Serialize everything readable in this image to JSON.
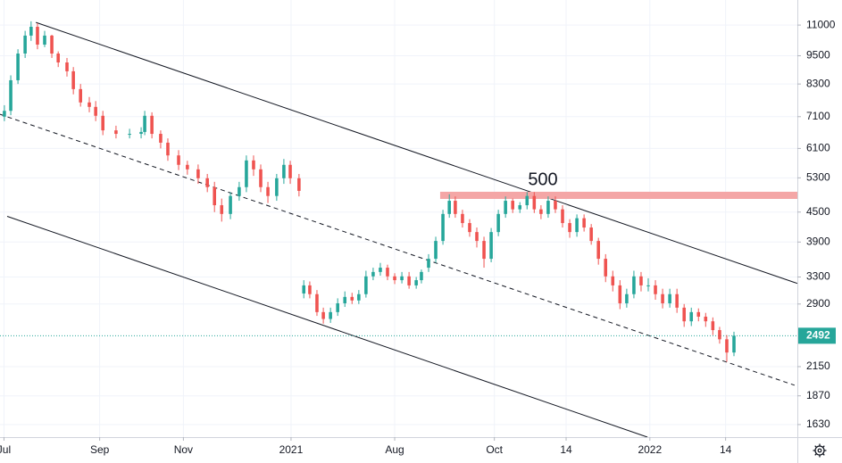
{
  "chart_data": {
    "type": "candlestick",
    "log_scale": true,
    "grid": true,
    "up_color": "#26a69a",
    "down_color": "#ef5350",
    "x": [
      1.1,
      2.7,
      4.5,
      6.3,
      7.8,
      9.4,
      11.2,
      13.0,
      14.6,
      16.8,
      18.4,
      20.2,
      22.4,
      24.0,
      25.8,
      29.1,
      32.5,
      35.4,
      36.3,
      38.1,
      40.3,
      42.1,
      44.8,
      47.0,
      49.7,
      52.0,
      53.8,
      55.6,
      57.8,
      60.0,
      61.8,
      63.6,
      65.4,
      67.2,
      69.4,
      71.2,
      72.8,
      75.0,
      76.2,
      77.7,
      79.5,
      81.1,
      82.9,
      84.7,
      86.5,
      88.3,
      90.0,
      91.8,
      93.6,
      95.4,
      97.2,
      99.0,
      100.8,
      102.6,
      104.4,
      105.7,
      107.5,
      109.3,
      111.1,
      112.7,
      114.2,
      116.0,
      117.8,
      119.6,
      121.4,
      123.2,
      125.0,
      126.8,
      128.6,
      130.4,
      132.2,
      134.0,
      135.7,
      137.5,
      139.3,
      141.1,
      142.9,
      144.7,
      146.5,
      148.3,
      150.1,
      151.9,
      153.7,
      155.5,
      157.2,
      159.0,
      160.8,
      162.6,
      164.4,
      166.2,
      168.0,
      169.8,
      171.6,
      173.4,
      175.2,
      177.0,
      178.8,
      180.5,
      182.3,
      184.1
    ],
    "open": [
      7100,
      7300,
      8450,
      9600,
      10460,
      10910,
      10020,
      10460,
      9600,
      9200,
      8820,
      8100,
      7600,
      7440,
      7130,
      6650,
      6540,
      6540,
      6600,
      7130,
      6540,
      6270,
      5900,
      5640,
      5520,
      5290,
      5070,
      4650,
      4460,
      4860,
      5070,
      5760,
      5520,
      5070,
      4860,
      5290,
      5640,
      5290,
      3050,
      3170,
      3040,
      2790,
      2700,
      2790,
      2910,
      3000,
      2950,
      3040,
      3310,
      3380,
      3450,
      3310,
      3250,
      3310,
      3170,
      3250,
      3450,
      3600,
      3920,
      4460,
      4750,
      4460,
      4270,
      4090,
      3920,
      3600,
      4090,
      4460,
      4750,
      4560,
      4650,
      4860,
      4560,
      4460,
      4750,
      4560,
      4270,
      4090,
      4370,
      4180,
      3920,
      3600,
      3310,
      3170,
      2910,
      3040,
      3310,
      3170,
      3170,
      3040,
      2910,
      3040,
      2850,
      2670,
      2790,
      2730,
      2670,
      2560,
      2450,
      2300
    ],
    "high": [
      7500,
      8650,
      9800,
      10700,
      11200,
      11100,
      10700,
      10500,
      9700,
      9400,
      9000,
      8300,
      7800,
      7650,
      7300,
      6800,
      6700,
      6750,
      7300,
      7250,
      6650,
      6400,
      6050,
      5750,
      5650,
      5400,
      5200,
      4800,
      4950,
      5200,
      5900,
      5900,
      5650,
      5200,
      5400,
      5800,
      5750,
      5400,
      3250,
      3230,
      3100,
      2850,
      2850,
      2980,
      3080,
      3060,
      3100,
      3400,
      3450,
      3530,
      3500,
      3360,
      3380,
      3380,
      3300,
      3420,
      3680,
      4000,
      4550,
      4900,
      4850,
      4550,
      4350,
      4180,
      4000,
      4170,
      4550,
      4850,
      4800,
      4720,
      4950,
      4950,
      4650,
      4850,
      4850,
      4650,
      4350,
      4450,
      4450,
      4250,
      3980,
      3680,
      3400,
      3250,
      3120,
      3400,
      3380,
      3280,
      3250,
      3120,
      3120,
      3120,
      2900,
      2850,
      2840,
      2780,
      2720,
      2600,
      2500,
      2540
    ],
    "low": [
      6950,
      7150,
      8300,
      9400,
      10200,
      9800,
      9900,
      9400,
      9000,
      8600,
      7900,
      7450,
      7250,
      6950,
      6500,
      6400,
      6400,
      6400,
      6500,
      6400,
      6100,
      5750,
      5500,
      5380,
      5150,
      4950,
      4500,
      4300,
      4350,
      4750,
      4950,
      5350,
      4950,
      4700,
      4750,
      5150,
      5150,
      4850,
      2980,
      2980,
      2740,
      2640,
      2650,
      2740,
      2860,
      2900,
      2900,
      2990,
      3250,
      3320,
      3250,
      3190,
      3200,
      3120,
      3120,
      3200,
      3380,
      3530,
      3850,
      4380,
      4380,
      4180,
      4000,
      3800,
      3450,
      3540,
      4010,
      4380,
      4480,
      4480,
      4560,
      4480,
      4350,
      4380,
      4480,
      4180,
      3980,
      4000,
      4100,
      3850,
      3500,
      3220,
      3080,
      2830,
      2850,
      2980,
      3080,
      3080,
      2960,
      2840,
      2850,
      2780,
      2600,
      2610,
      2670,
      2600,
      2500,
      2400,
      2200,
      2260
    ],
    "close": [
      7300,
      8450,
      9600,
      10460,
      10910,
      10020,
      10460,
      9600,
      9200,
      8820,
      8100,
      7600,
      7440,
      7130,
      6650,
      6540,
      6540,
      6600,
      7130,
      6540,
      6270,
      5900,
      5640,
      5520,
      5290,
      5070,
      4650,
      4460,
      4860,
      5070,
      5760,
      5520,
      5070,
      4860,
      5290,
      5640,
      5290,
      4980,
      3170,
      3040,
      2790,
      2700,
      2790,
      2910,
      3000,
      2950,
      3040,
      3310,
      3380,
      3450,
      3310,
      3250,
      3310,
      3170,
      3250,
      3380,
      3600,
      3920,
      4460,
      4750,
      4460,
      4270,
      4090,
      3920,
      3600,
      4090,
      4460,
      4750,
      4560,
      4650,
      4860,
      4560,
      4460,
      4750,
      4560,
      4270,
      4090,
      4370,
      4180,
      3920,
      3600,
      3310,
      3170,
      2910,
      3040,
      3310,
      3170,
      3170,
      3040,
      2910,
      3040,
      2850,
      2670,
      2790,
      2730,
      2670,
      2560,
      2450,
      2300,
      2492
    ],
    "xlim": [
      0,
      200
    ],
    "ylim": [
      1535,
      12400
    ],
    "xticks": [
      {
        "value": 1,
        "label": "Jul"
      },
      {
        "value": 25,
        "label": "Sep"
      },
      {
        "value": 46,
        "label": "Nov"
      },
      {
        "value": 73,
        "label": "2021"
      },
      {
        "value": 99,
        "label": "Aug"
      },
      {
        "value": 124,
        "label": "Oct"
      },
      {
        "value": 142,
        "label": "14"
      },
      {
        "value": 163,
        "label": "2022"
      },
      {
        "value": 182,
        "label": "14"
      }
    ],
    "yticks": [
      11000,
      9500,
      8300,
      7100,
      6100,
      5300,
      4500,
      3900,
      3300,
      2900,
      2150,
      1870,
      1630
    ],
    "trend_lines": [
      {
        "x": [
          9,
          200
        ],
        "y": [
          11140,
          3200
        ],
        "style": "solid",
        "color": "#131722"
      },
      {
        "x": [
          0,
          199.3
        ],
        "y": [
          7180,
          1967
        ],
        "style": "dashed",
        "color": "#131722"
      },
      {
        "x": [
          1.8,
          162.4
        ],
        "y": [
          4410,
          1535
        ],
        "style": "solid",
        "color": "#131722"
      }
    ],
    "resistance": {
      "value": 4875,
      "x_start": 110.4,
      "color": "#f4a6a6"
    },
    "annotation": "500",
    "last_price_color": "#26a69a"
  }
}
